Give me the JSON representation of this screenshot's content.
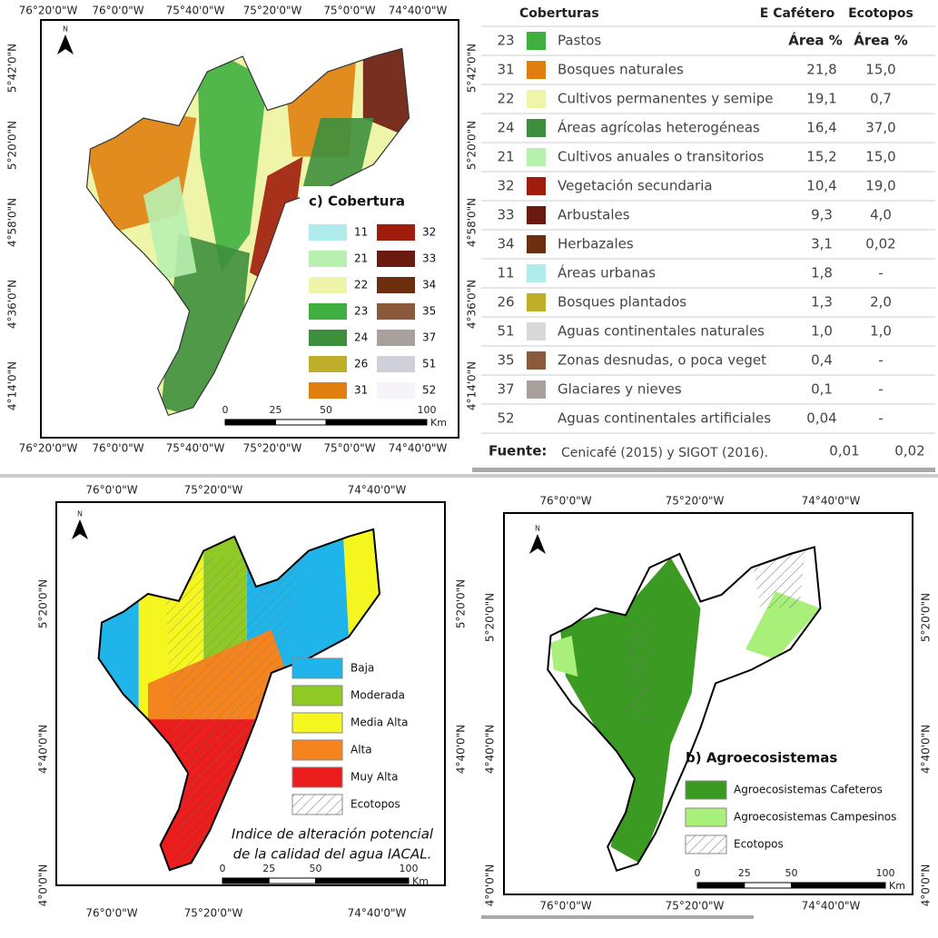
{
  "map_c": {
    "title": "c) Cobertura",
    "north": "N",
    "top_labels": [
      "76°20'0\"W",
      "76°0'0\"W",
      "75°40'0\"W",
      "75°20'0\"W",
      "75°0'0\"W",
      "74°40'0\"W"
    ],
    "bottom_labels": [
      "76°20'0\"W",
      "76°0'0\"W",
      "75°40'0\"W",
      "75°20'0\"W",
      "75°0'0\"W",
      "74°40'0\"W"
    ],
    "left_labels": [
      "5°42'0\"N",
      "5°20'0\"N",
      "4°58'0\"N",
      "4°36'0\"N",
      "4°14'0\"N"
    ],
    "right_labels": [
      "5°42'0\"N",
      "5°20'0\"N",
      "4°58'0\"N",
      "4°36'0\"N",
      "4°14'0\"N"
    ],
    "legend": [
      {
        "code": "11",
        "color": "#b0ecec"
      },
      {
        "code": "21",
        "color": "#b8f0b0"
      },
      {
        "code": "22",
        "color": "#eef5a8"
      },
      {
        "code": "23",
        "color": "#3fb03f"
      },
      {
        "code": "24",
        "color": "#3d8f3d"
      },
      {
        "code": "26",
        "color": "#bfae2a"
      },
      {
        "code": "31",
        "color": "#e07f10"
      },
      {
        "code": "32",
        "color": "#a01c0c"
      },
      {
        "code": "33",
        "color": "#6b1a0f"
      },
      {
        "code": "34",
        "color": "#6b2f10"
      },
      {
        "code": "35",
        "color": "#8b5a3c"
      },
      {
        "code": "37",
        "color": "#a8a09c"
      },
      {
        "code": "51",
        "color": "#d0d0d8"
      },
      {
        "code": "52",
        "color": "#f6f4fa"
      }
    ],
    "scale": [
      "0",
      "25",
      "50",
      "100"
    ],
    "scale_unit": "Km"
  },
  "table": {
    "header": [
      "Coberturas",
      "E Cafétero",
      "Ecotopos"
    ],
    "subheader": [
      "Área %",
      "Área %"
    ],
    "rows": [
      {
        "code": "23",
        "color": "#3fb03f",
        "name": "Pastos",
        "values": []
      },
      {
        "code": "31",
        "color": "#e07f10",
        "name": "Bosques naturales",
        "values": [
          "21,8",
          "15,0"
        ]
      },
      {
        "code": "22",
        "color": "#eef5a8",
        "name": "Cultivos  permanentes y semipe",
        "values": [
          "19,1",
          "0,7"
        ]
      },
      {
        "code": "24",
        "color": "#3d8f3d",
        "name": "Áreas agrícolas heterogéneas",
        "values": [
          "16,4",
          "37,0"
        ]
      },
      {
        "code": "21",
        "color": "#b8f0b0",
        "name": "Cultivos anuales o transitorios",
        "values": [
          "15,2",
          "15,0"
        ]
      },
      {
        "code": "32",
        "color": "#a01c0c",
        "name": "Vegetación secundaria",
        "values": [
          "10,4",
          "19,0"
        ]
      },
      {
        "code": "33",
        "color": "#6b1a0f",
        "name": "Arbustales",
        "values": [
          "9,3",
          "4,0"
        ]
      },
      {
        "code": "34",
        "color": "#6b2f10",
        "name": "Herbazales",
        "values": [
          "3,1",
          "0,02"
        ]
      },
      {
        "code": "11",
        "color": "#b0ecec",
        "name": "Áreas urbanas",
        "values": [
          "1,8",
          "-"
        ]
      },
      {
        "code": "26",
        "color": "#bfae2a",
        "name": "Bosques plantados",
        "values": [
          "1,3",
          "2,0"
        ]
      },
      {
        "code": "51",
        "color": "#d8d8d8",
        "name": "Aguas continentales naturales",
        "values": [
          "1,0",
          "1,0"
        ]
      },
      {
        "code": "35",
        "color": "#8b5a3c",
        "name": "Zonas desnudas, o poca veget",
        "values": [
          "0,4",
          "-"
        ]
      },
      {
        "code": "37",
        "color": "#a8a09c",
        "name": "Glaciares y nieves",
        "values": [
          "0,1",
          "-"
        ]
      },
      {
        "code": "52",
        "color": null,
        "name": "Aguas continentales artificiales",
        "values": [
          "0,04",
          "-"
        ]
      }
    ],
    "source": {
      "label": "Fuente:",
      "text": "Cenicafé (2015) y SIGOT (2016).",
      "values": [
        "0,01",
        "0,02"
      ]
    }
  },
  "map_iacal": {
    "north": "N",
    "top_labels": [
      "76°0'0\"W",
      "75°20'0\"W",
      "74°40'0\"W"
    ],
    "bottom_labels": [
      "76°0'0\"W",
      "75°20'0\"W",
      "74°40'0\"W"
    ],
    "left_labels": [
      "5°20'0\"N",
      "4°40'0\"N",
      "4°0'0\"N"
    ],
    "right_labels": [
      "5°20'0\"N",
      "4°40'0\"N"
    ],
    "legend": [
      {
        "label": "Baja",
        "color": "#1fb4ea"
      },
      {
        "label": "Moderada",
        "color": "#8fc926"
      },
      {
        "label": "Media Alta",
        "color": "#f5f51f"
      },
      {
        "label": "Alta",
        "color": "#f5841f"
      },
      {
        "label": "Muy Alta",
        "color": "#ea1c1c"
      },
      {
        "label": "Ecotopos",
        "color": "hatch"
      }
    ],
    "caption": [
      "Indice de alteración potencial",
      "de la calidad del agua IACAL."
    ],
    "scale": [
      "0",
      "25",
      "50",
      "100"
    ],
    "scale_unit": "Km"
  },
  "map_agro": {
    "title": "b) Agroecosistemas",
    "north": "N",
    "top_labels": [
      "76°0'0\"W",
      "75°20'0\"W",
      "74°40'0\"W"
    ],
    "bottom_labels": [
      "76°0'0\"W",
      "75°20'0\"W",
      "74°40'0\"W"
    ],
    "left_labels": [
      "5°20'0\"N",
      "4°40'0\"N",
      "4°0'0\"N"
    ],
    "right_labels": [
      "5°20'0\"N",
      "4°40'0\"N",
      "4°0'0\"N"
    ],
    "legend": [
      {
        "label": "Agroecosistemas Cafeteros",
        "color": "#3a9a22"
      },
      {
        "label": "Agroecosistemas Campesinos",
        "color": "#a8f07a"
      },
      {
        "label": "Ecotopos",
        "color": "hatch"
      }
    ],
    "scale": [
      "0",
      "25",
      "50",
      "100"
    ],
    "scale_unit": "Km"
  }
}
